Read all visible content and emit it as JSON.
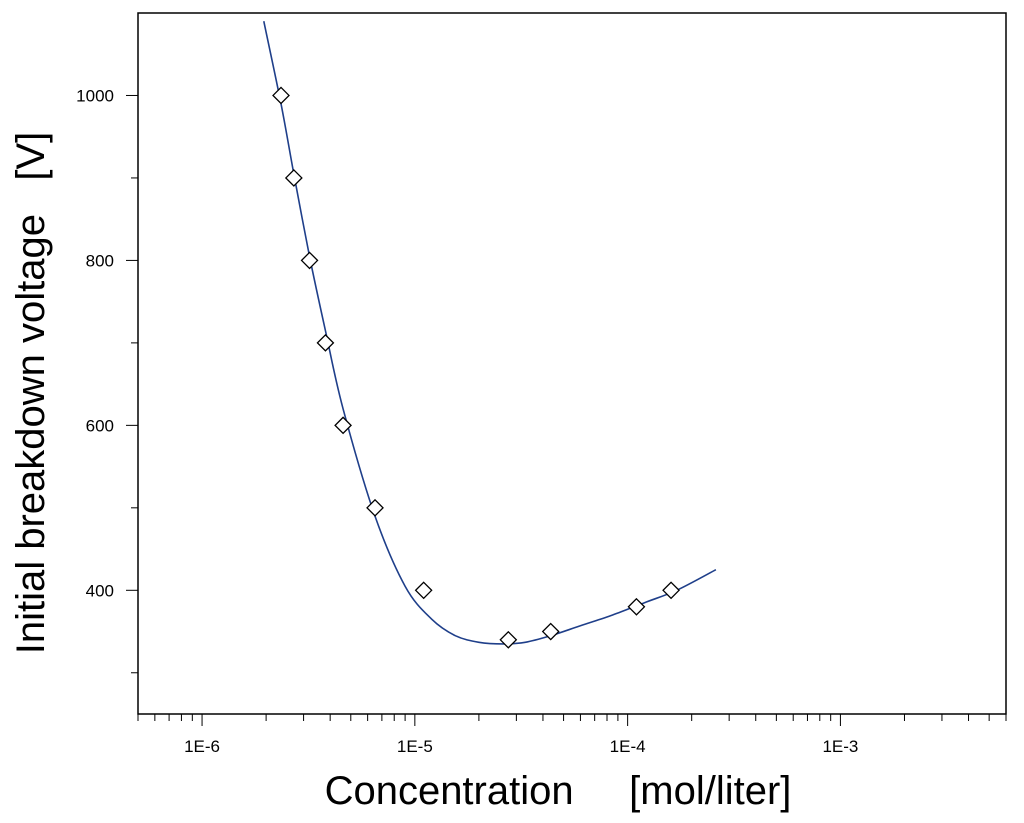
{
  "chart_data": {
    "type": "scatter",
    "title": "",
    "xlabel": "Concentration     [mol/liter]",
    "ylabel": "Initial breakdown voltage   [V]",
    "x_scale": "log",
    "xlim": [
      5e-07,
      0.006
    ],
    "ylim": [
      250,
      1100
    ],
    "x_ticks": [
      {
        "value": 1e-06,
        "label": "1E-6"
      },
      {
        "value": 1e-05,
        "label": "1E-5"
      },
      {
        "value": 0.0001,
        "label": "1E-4"
      },
      {
        "value": 0.001,
        "label": "1E-3"
      }
    ],
    "y_ticks": [
      {
        "value": 1000,
        "label": "1000"
      },
      {
        "value": 800,
        "label": "800"
      },
      {
        "value": 600,
        "label": "600"
      },
      {
        "value": 400,
        "label": "400"
      }
    ],
    "y_minor_ticks": [
      300,
      500,
      700,
      900
    ],
    "grid": false,
    "series": [
      {
        "kind": "points",
        "marker": "diamond",
        "color": "#000000",
        "x": [
          2.35e-06,
          2.7e-06,
          3.2e-06,
          3.8e-06,
          4.6e-06,
          6.5e-06,
          1.1e-05,
          2.75e-05,
          4.35e-05,
          0.00011,
          0.00016
        ],
        "y": [
          1000,
          900,
          800,
          700,
          600,
          500,
          400,
          340,
          350,
          380,
          400
        ]
      },
      {
        "kind": "fit-line",
        "color": "#1f3f8a",
        "x": [
          1.95e-06,
          2.35e-06,
          2.7e-06,
          3.2e-06,
          3.8e-06,
          4.6e-06,
          6.5e-06,
          9e-06,
          1.2e-05,
          1.55e-05,
          2e-05,
          2.6e-05,
          3.3e-05,
          4.35e-05,
          6e-05,
          8.5e-05,
          0.00012,
          0.00017,
          0.00026
        ],
        "y": [
          1090,
          990,
          905,
          805,
          715,
          620,
          490,
          405,
          365,
          345,
          337,
          335,
          337,
          345,
          357,
          370,
          385,
          400,
          425
        ]
      }
    ]
  }
}
